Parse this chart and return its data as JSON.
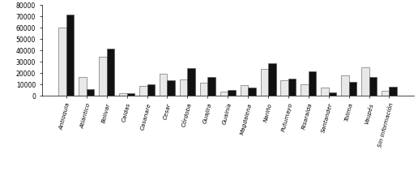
{
  "categories": [
    "Antioquia",
    "Atlántico",
    "Bolívar",
    "Caldas",
    "Casanare",
    "Cesar",
    "Córdoba",
    "Guajira",
    "Guainía",
    "Magdalena",
    "Nariño",
    "Putumayo",
    "Risaralda",
    "Santander",
    "Tolima",
    "Vaupés",
    "Sin información"
  ],
  "recibidos": [
    60000,
    16000,
    34000,
    2000,
    8500,
    19000,
    14000,
    11000,
    3500,
    9000,
    23000,
    13000,
    9500,
    7000,
    17500,
    25000,
    4000
  ],
  "expulsados": [
    71000,
    5500,
    41000,
    1500,
    10000,
    13000,
    24000,
    16000,
    5000,
    6500,
    28000,
    15000,
    21000,
    2500,
    12000,
    16000,
    7500
  ],
  "bar_color_recibidos": "#e8e8e8",
  "bar_color_expulsados": "#111111",
  "ylim": [
    0,
    80000
  ],
  "yticks": [
    0,
    10000,
    20000,
    30000,
    40000,
    50000,
    60000,
    70000,
    80000
  ],
  "background_color": "#ffffff",
  "edge_color": "#555555"
}
